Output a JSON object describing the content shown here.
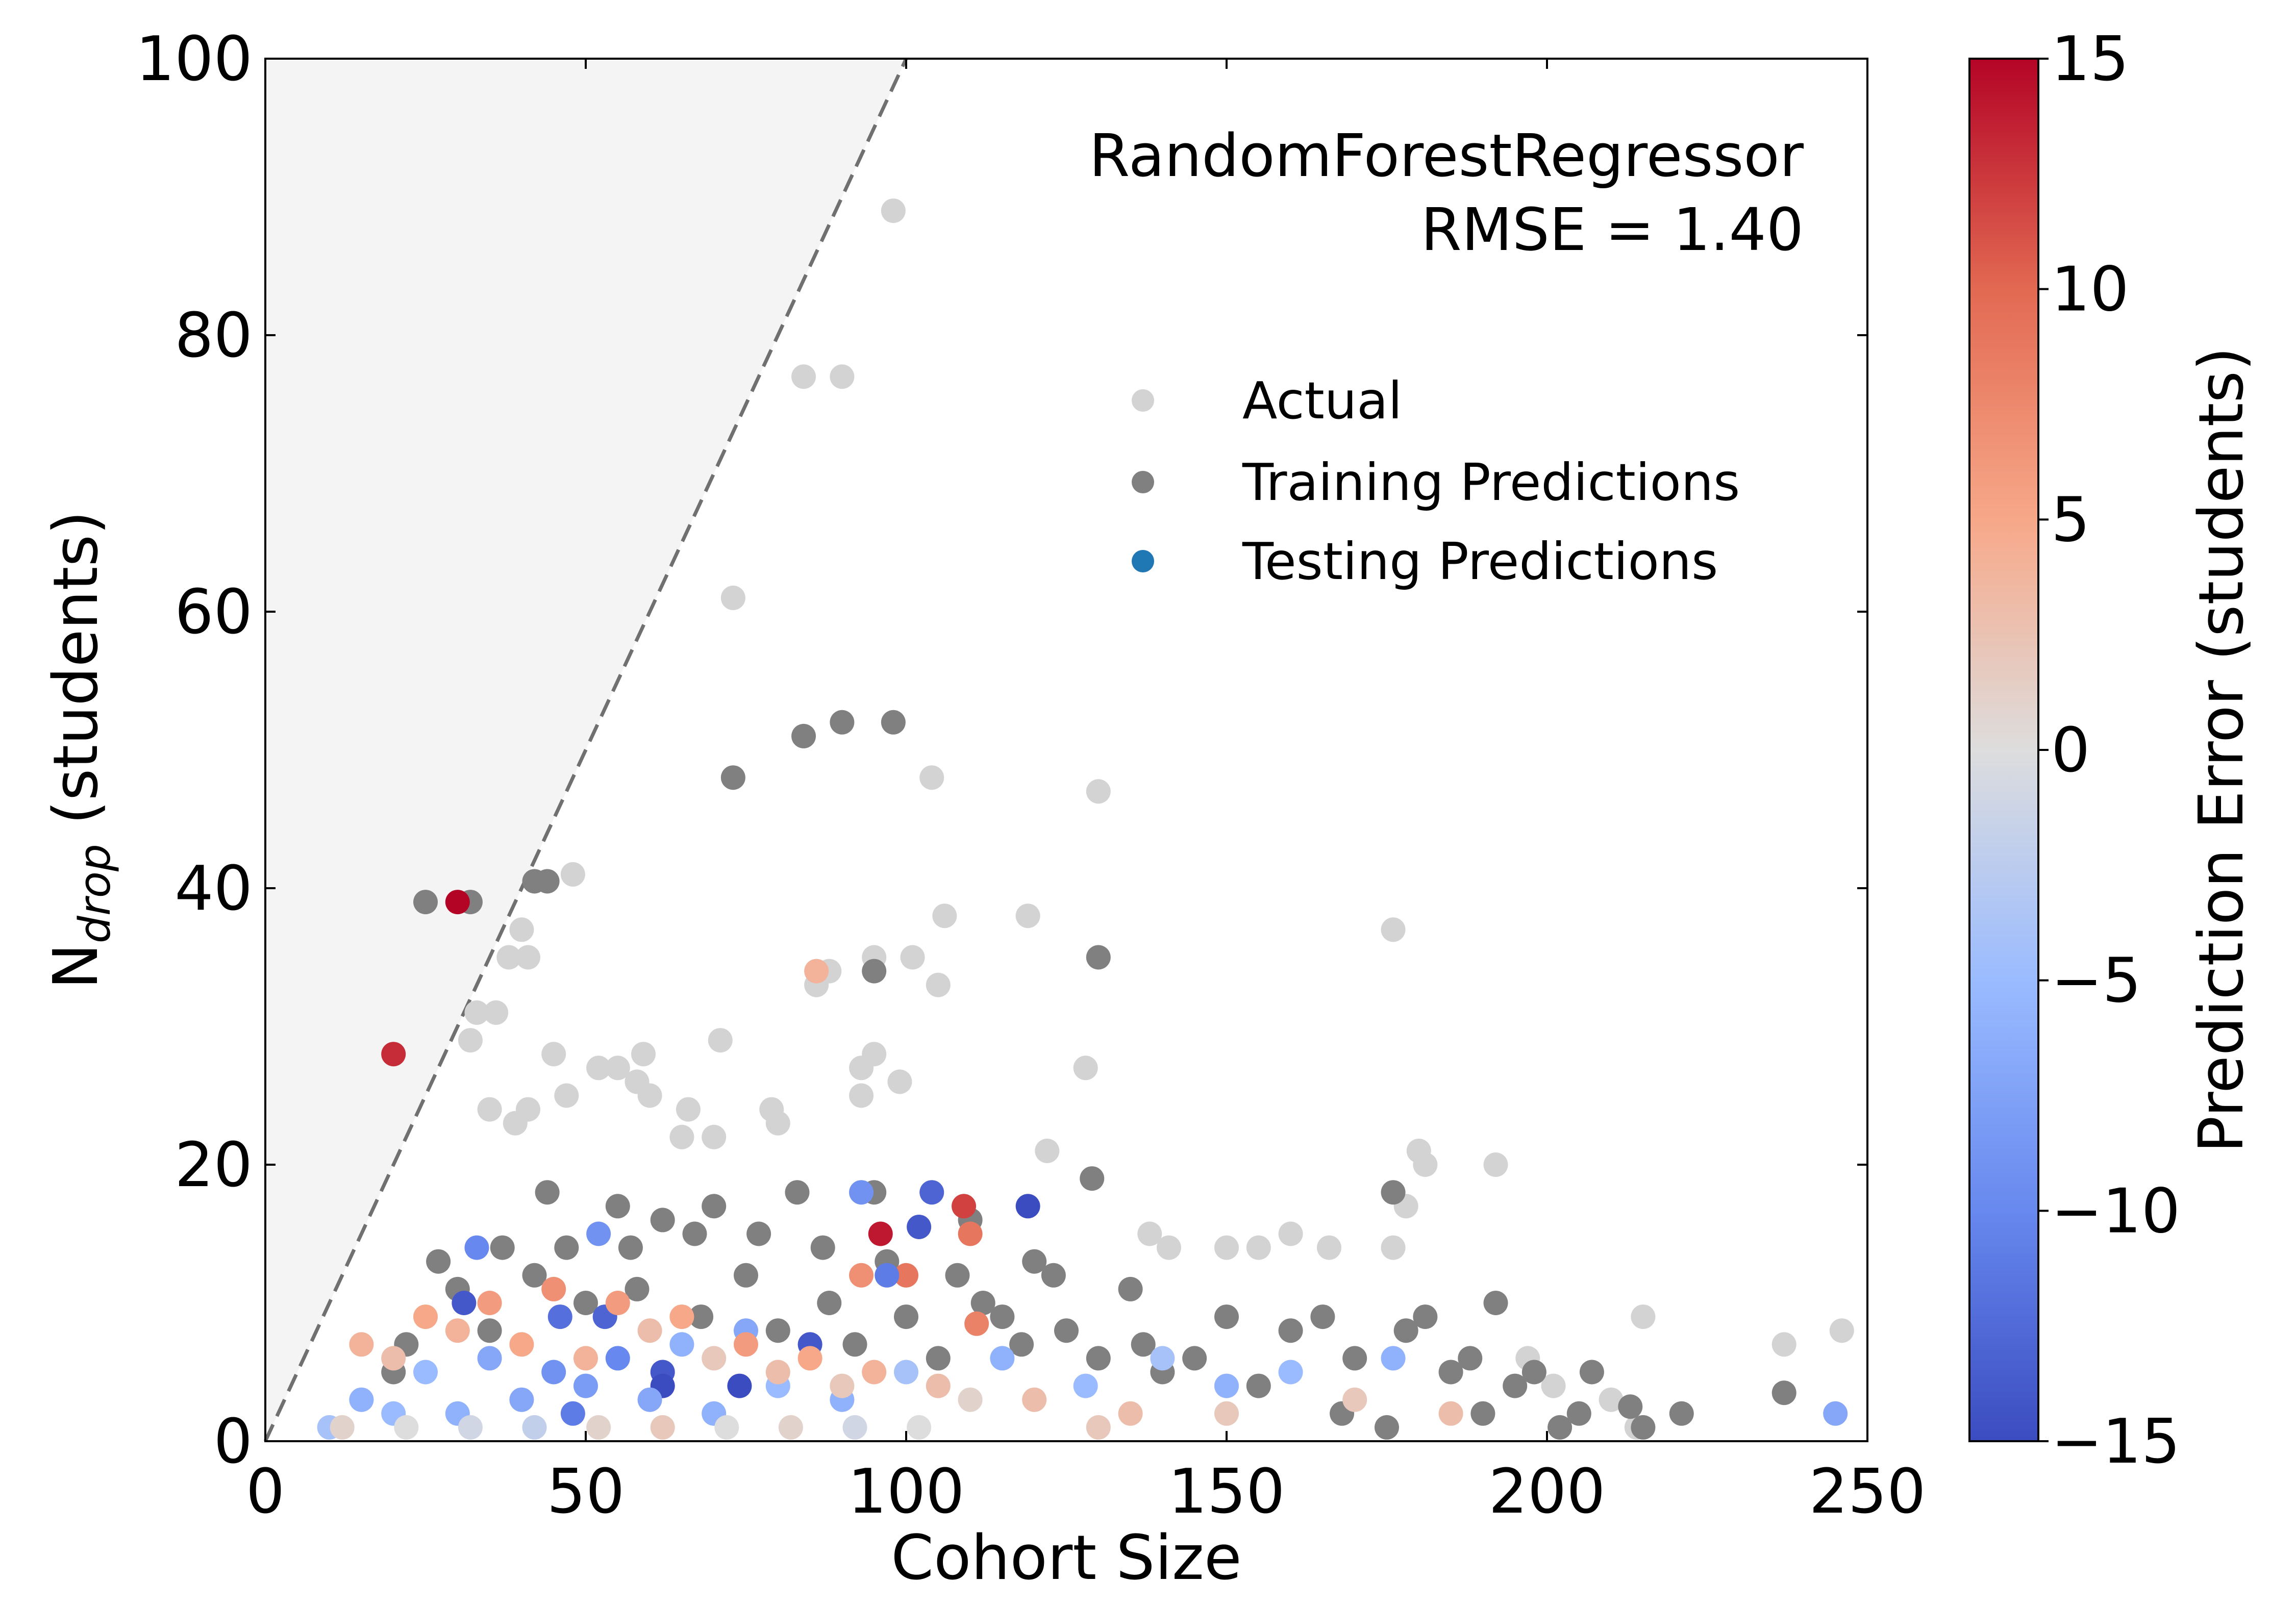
{
  "chart_data": {
    "type": "scatter",
    "annotation": {
      "model": "RandomForestRegressor",
      "metric": "RMSE = 1.40"
    },
    "xlabel": "Cohort Size",
    "ylabel_main": "N",
    "ylabel_sub": "drop",
    "ylabel_rest": " (students)",
    "xlim": [
      0,
      250
    ],
    "ylim": [
      0,
      100
    ],
    "xticks": [
      0,
      50,
      100,
      150,
      200,
      250
    ],
    "yticks": [
      0,
      20,
      40,
      60,
      80,
      100
    ],
    "x_tick_labels": [
      "0",
      "50",
      "100",
      "150",
      "200",
      "250"
    ],
    "y_tick_labels": [
      "0",
      "20",
      "40",
      "60",
      "80",
      "100"
    ],
    "reference_line": {
      "style": "dashed",
      "slope": 1,
      "description_x": [
        0,
        100
      ],
      "description_y": [
        0,
        100
      ]
    },
    "grid": false,
    "legend": {
      "placement": "upper-right",
      "entries": [
        {
          "name": "Actual",
          "color": "#d3d3d3"
        },
        {
          "name": "Training Predictions",
          "color": "#808080"
        },
        {
          "name": "Testing Predictions",
          "color": "#1f77b4"
        }
      ]
    },
    "colorbar": {
      "label": "Prediction Error (students)",
      "range": [
        -15,
        15
      ],
      "ticks": [
        -15,
        -10,
        -5,
        0,
        5,
        10,
        15
      ],
      "tick_labels": [
        "−15",
        "−10",
        "−5",
        "0",
        "5",
        "10",
        "15"
      ],
      "colormap": "coolwarm"
    },
    "series": [
      {
        "name": "Actual",
        "color": "#d3d3d3",
        "points": [
          [
            98,
            89
          ],
          [
            84,
            77
          ],
          [
            90,
            77
          ],
          [
            73,
            61
          ],
          [
            104,
            48
          ],
          [
            130,
            47
          ],
          [
            48,
            41
          ],
          [
            40,
            37
          ],
          [
            106,
            38
          ],
          [
            119,
            38
          ],
          [
            176,
            37
          ],
          [
            38,
            35
          ],
          [
            41,
            35
          ],
          [
            95,
            35
          ],
          [
            101,
            35
          ],
          [
            86,
            33
          ],
          [
            88,
            34
          ],
          [
            105,
            33
          ],
          [
            36,
            31
          ],
          [
            33,
            31
          ],
          [
            32,
            29
          ],
          [
            71,
            29
          ],
          [
            45,
            28
          ],
          [
            59,
            28
          ],
          [
            95,
            28
          ],
          [
            52,
            27
          ],
          [
            55,
            27
          ],
          [
            93,
            27
          ],
          [
            128,
            27
          ],
          [
            47,
            25
          ],
          [
            58,
            26
          ],
          [
            60,
            25
          ],
          [
            79,
            24
          ],
          [
            93,
            25
          ],
          [
            99,
            26
          ],
          [
            35,
            24
          ],
          [
            41,
            24
          ],
          [
            66,
            24
          ],
          [
            39,
            23
          ],
          [
            80,
            23
          ],
          [
            65,
            22
          ],
          [
            70,
            22
          ],
          [
            122,
            21
          ],
          [
            180,
            21
          ],
          [
            181,
            20
          ],
          [
            192,
            20
          ],
          [
            178,
            17
          ],
          [
            176,
            14
          ],
          [
            138,
            15
          ],
          [
            141,
            14
          ],
          [
            150,
            14
          ],
          [
            155,
            14
          ],
          [
            160,
            15
          ],
          [
            166,
            14
          ],
          [
            215,
            9
          ],
          [
            237,
            7
          ],
          [
            246,
            8
          ],
          [
            197,
            6
          ],
          [
            201,
            4
          ],
          [
            210,
            3
          ],
          [
            214,
            1
          ]
        ]
      },
      {
        "name": "Training Predictions",
        "color": "#808080",
        "points": [
          [
            25,
            39
          ],
          [
            32,
            39
          ],
          [
            42,
            40.5
          ],
          [
            44,
            40.5
          ],
          [
            73,
            48
          ],
          [
            84,
            51
          ],
          [
            90,
            52
          ],
          [
            98,
            52
          ],
          [
            95,
            34
          ],
          [
            130,
            35
          ],
          [
            129,
            19
          ],
          [
            176,
            18
          ],
          [
            181,
            9
          ],
          [
            192,
            10
          ],
          [
            207,
            5
          ],
          [
            237,
            3.5
          ],
          [
            221,
            2
          ],
          [
            213,
            2.5
          ],
          [
            202,
            1
          ],
          [
            190,
            2
          ],
          [
            175,
            1
          ],
          [
            168,
            2
          ],
          [
            155,
            4
          ],
          [
            145,
            6
          ],
          [
            137,
            7
          ],
          [
            125,
            8
          ],
          [
            115,
            9
          ],
          [
            108,
            12
          ],
          [
            97,
            13
          ],
          [
            87,
            14
          ],
          [
            77,
            15
          ],
          [
            67,
            15
          ],
          [
            57,
            14
          ],
          [
            47,
            14
          ],
          [
            37,
            14
          ],
          [
            27,
            13
          ],
          [
            44,
            18
          ],
          [
            55,
            17
          ],
          [
            62,
            16
          ],
          [
            70,
            17
          ],
          [
            83,
            18
          ],
          [
            95,
            18
          ],
          [
            110,
            16
          ],
          [
            120,
            13
          ],
          [
            135,
            11
          ],
          [
            150,
            9
          ],
          [
            160,
            8
          ],
          [
            170,
            6
          ],
          [
            185,
            5
          ],
          [
            195,
            4
          ],
          [
            205,
            2
          ],
          [
            215,
            1
          ],
          [
            140,
            5
          ],
          [
            130,
            6
          ],
          [
            118,
            7
          ],
          [
            105,
            6
          ],
          [
            92,
            7
          ],
          [
            80,
            8
          ],
          [
            68,
            9
          ],
          [
            50,
            10
          ],
          [
            35,
            8
          ],
          [
            22,
            7
          ],
          [
            20,
            5
          ],
          [
            30,
            11
          ],
          [
            42,
            12
          ],
          [
            58,
            11
          ],
          [
            75,
            12
          ],
          [
            88,
            10
          ],
          [
            100,
            9
          ],
          [
            112,
            10
          ],
          [
            123,
            12
          ],
          [
            165,
            9
          ],
          [
            178,
            8
          ],
          [
            188,
            6
          ],
          [
            198,
            5
          ]
        ]
      },
      {
        "name": "Testing Predictions",
        "color": "#1f77b4",
        "points": [
          [
            30,
            39,
            15
          ],
          [
            20,
            28,
            13
          ],
          [
            96,
            15,
            14
          ],
          [
            109,
            17,
            12
          ],
          [
            110,
            15,
            9
          ],
          [
            100,
            12,
            9
          ],
          [
            93,
            12,
            7
          ],
          [
            111,
            8.5,
            8
          ],
          [
            86,
            34,
            4
          ],
          [
            104,
            18,
            -13
          ],
          [
            119,
            17,
            -15
          ],
          [
            102,
            15.5,
            -14
          ],
          [
            97,
            12,
            -11
          ],
          [
            93,
            18,
            -9
          ],
          [
            85,
            7,
            -14
          ],
          [
            62,
            5,
            -14
          ],
          [
            62,
            4,
            -15
          ],
          [
            74,
            4,
            -15
          ],
          [
            31,
            10,
            -14
          ],
          [
            53,
            9,
            -13
          ],
          [
            46,
            9,
            -12
          ],
          [
            33,
            14,
            -10
          ],
          [
            52,
            15,
            -9
          ],
          [
            245,
            2,
            -7
          ],
          [
            176,
            6,
            -6
          ],
          [
            160,
            5,
            -5
          ],
          [
            150,
            4,
            -6
          ],
          [
            140,
            6,
            -4
          ],
          [
            128,
            4,
            -5
          ],
          [
            115,
            6,
            -6
          ],
          [
            100,
            5,
            -4
          ],
          [
            90,
            3,
            -6
          ],
          [
            80,
            4,
            -5
          ],
          [
            70,
            2,
            -6
          ],
          [
            60,
            3,
            -7
          ],
          [
            50,
            4,
            -8
          ],
          [
            40,
            3,
            -7
          ],
          [
            30,
            2,
            -6
          ],
          [
            20,
            2,
            -5
          ],
          [
            10,
            1,
            -4
          ],
          [
            15,
            3,
            -6
          ],
          [
            25,
            5,
            -5
          ],
          [
            35,
            6,
            -7
          ],
          [
            45,
            5,
            -9
          ],
          [
            55,
            6,
            -10
          ],
          [
            65,
            7,
            -6
          ],
          [
            75,
            8,
            -7
          ],
          [
            48,
            2,
            -11
          ],
          [
            15,
            7,
            4
          ],
          [
            25,
            9,
            5
          ],
          [
            35,
            10,
            6
          ],
          [
            45,
            11,
            7
          ],
          [
            55,
            10,
            6
          ],
          [
            65,
            9,
            5
          ],
          [
            75,
            7,
            6
          ],
          [
            85,
            6,
            5
          ],
          [
            95,
            5,
            4
          ],
          [
            105,
            4,
            3
          ],
          [
            120,
            3,
            3
          ],
          [
            135,
            2,
            3
          ],
          [
            150,
            2,
            2
          ],
          [
            170,
            3,
            2
          ],
          [
            185,
            2,
            3
          ],
          [
            20,
            6,
            3
          ],
          [
            30,
            8,
            4
          ],
          [
            40,
            7,
            5
          ],
          [
            50,
            6,
            4
          ],
          [
            60,
            8,
            3
          ],
          [
            70,
            6,
            2
          ],
          [
            80,
            5,
            3
          ],
          [
            90,
            4,
            2
          ],
          [
            110,
            3,
            1
          ],
          [
            130,
            1,
            2
          ],
          [
            12,
            1,
            1
          ],
          [
            22,
            1,
            0
          ],
          [
            32,
            1,
            -1
          ],
          [
            42,
            1,
            -2
          ],
          [
            52,
            1,
            1
          ],
          [
            62,
            1,
            2
          ],
          [
            72,
            1,
            0
          ],
          [
            82,
            1,
            1
          ],
          [
            92,
            1,
            -1
          ],
          [
            102,
            1,
            0
          ]
        ]
      }
    ]
  }
}
